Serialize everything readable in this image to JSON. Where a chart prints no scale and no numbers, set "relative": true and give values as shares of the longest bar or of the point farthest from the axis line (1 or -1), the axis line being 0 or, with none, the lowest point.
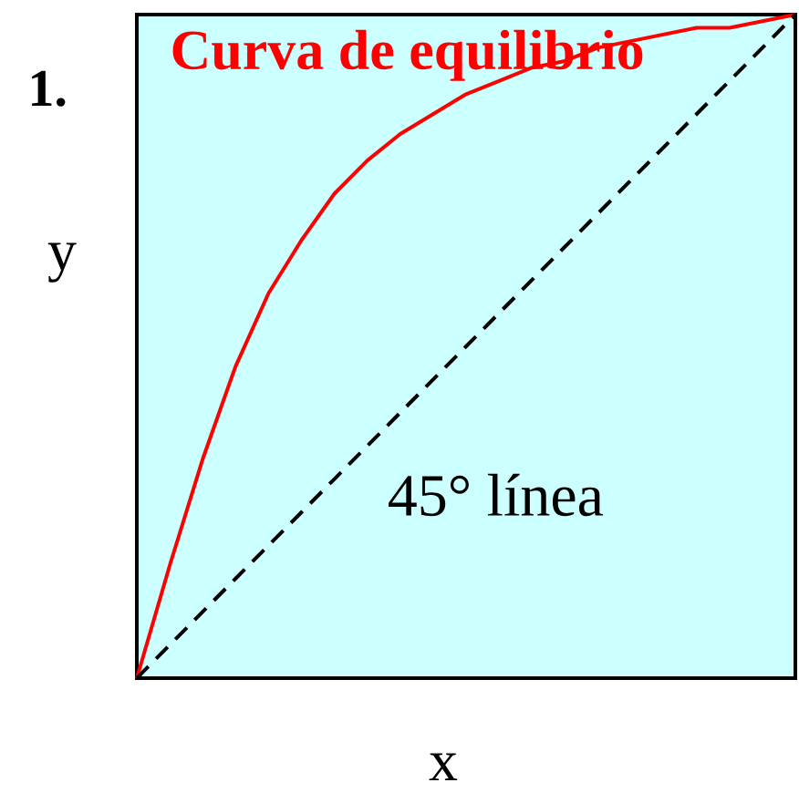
{
  "chart_data": {
    "type": "line",
    "relative": true,
    "xlabel": "x",
    "ylabel": "y",
    "annotations": [
      "1."
    ],
    "categories": [
      null,
      null,
      null,
      null,
      null,
      null,
      null,
      null,
      null,
      null,
      null,
      null,
      null,
      null,
      null,
      null,
      null,
      null,
      null,
      null,
      null
    ],
    "series": [
      {
        "name": "Curva de equilibrio",
        "color": "#ff0000",
        "line_style": "solid",
        "values": [
          0,
          0.17,
          0.33,
          0.47,
          0.58,
          0.66,
          0.73,
          0.78,
          0.82,
          0.85,
          0.88,
          0.9,
          0.92,
          0.93,
          0.95,
          0.96,
          0.97,
          0.98,
          0.98,
          0.99,
          1
        ]
      },
      {
        "name": "45° línea",
        "color": "#000000",
        "line_style": "dashed",
        "values": [
          0,
          0.05,
          0.1,
          0.15,
          0.2,
          0.25,
          0.3,
          0.35,
          0.4,
          0.45,
          0.5,
          0.55,
          0.6,
          0.65,
          0.7,
          0.75,
          0.8,
          0.85,
          0.9,
          0.95,
          1
        ]
      }
    ]
  }
}
